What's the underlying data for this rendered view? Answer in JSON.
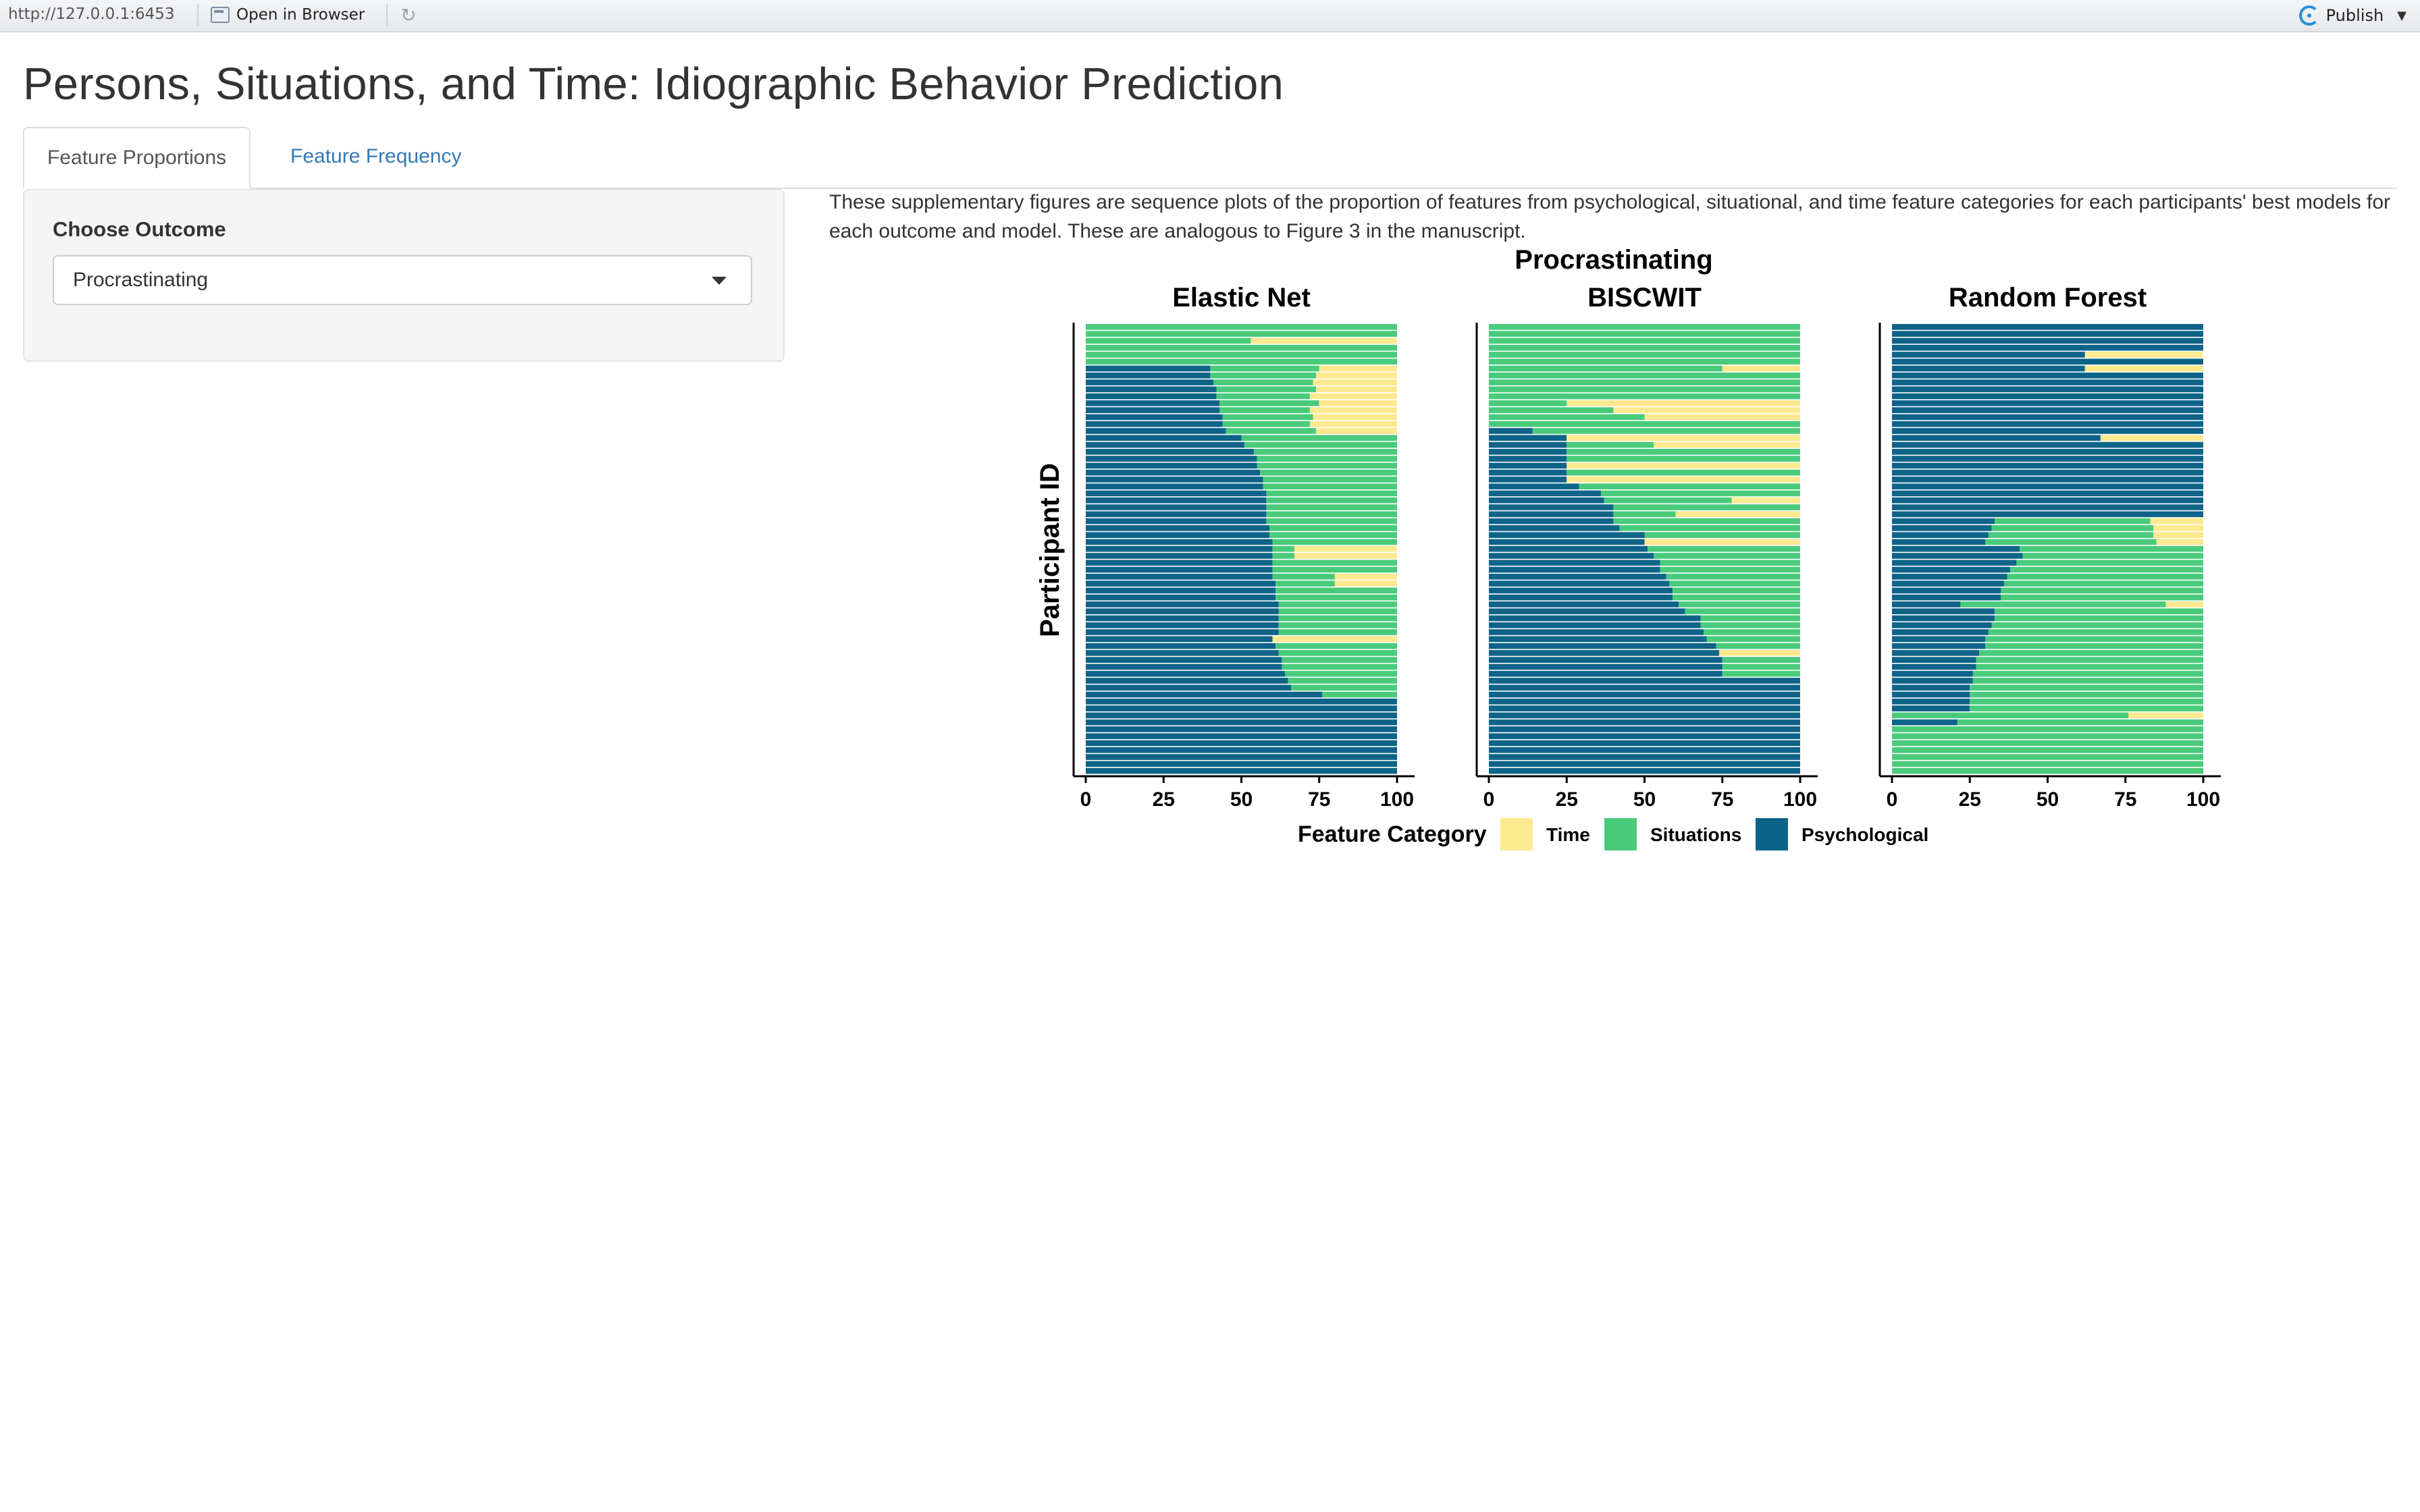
{
  "toolbar": {
    "url": "http://127.0.0.1:6453",
    "open_in_browser": "Open in Browser",
    "publish": "Publish"
  },
  "page": {
    "title": "Persons, Situations, and Time: Idiographic Behavior Prediction"
  },
  "tabs": [
    {
      "label": "Feature Proportions",
      "active": true
    },
    {
      "label": "Feature Frequency",
      "active": false
    }
  ],
  "sidebar": {
    "choose_outcome_label": "Choose Outcome",
    "selected_outcome": "Procrastinating"
  },
  "description": "These supplementary figures are sequence plots of the proportion of features from psychological, situational, and time feature categories for each participants' best models for each outcome and model. These are analogous to Figure 3 in the manuscript.",
  "colors": {
    "time": "#FDE98F",
    "situations": "#4ACB7C",
    "psychological": "#0D6388"
  },
  "chart_data": {
    "type": "bar",
    "orientation": "horizontal",
    "stacked": true,
    "title": "Procrastinating",
    "ylabel": "Participant ID",
    "xlim": [
      0,
      100
    ],
    "xticks": [
      "0",
      "25",
      "50",
      "75",
      "100"
    ],
    "legend": {
      "title": "Feature Category",
      "position": "bottom",
      "entries": [
        "Time",
        "Situations",
        "Psychological"
      ]
    },
    "panels": [
      {
        "name": "Elastic Net",
        "rows_note": "each row = [Psychological %, Situations %, Time %], top to bottom",
        "rows": [
          [
            0,
            100,
            0
          ],
          [
            0,
            100,
            0
          ],
          [
            0,
            53,
            47
          ],
          [
            0,
            100,
            0
          ],
          [
            0,
            100,
            0
          ],
          [
            0,
            100,
            0
          ],
          [
            40,
            35,
            25
          ],
          [
            40,
            34,
            26
          ],
          [
            41,
            32,
            27
          ],
          [
            42,
            32,
            26
          ],
          [
            42,
            30,
            28
          ],
          [
            43,
            32,
            25
          ],
          [
            43,
            29,
            28
          ],
          [
            44,
            29,
            27
          ],
          [
            44,
            28,
            28
          ],
          [
            45,
            29,
            26
          ],
          [
            50,
            50,
            0
          ],
          [
            51,
            49,
            0
          ],
          [
            54,
            46,
            0
          ],
          [
            55,
            45,
            0
          ],
          [
            55,
            45,
            0
          ],
          [
            56,
            44,
            0
          ],
          [
            57,
            43,
            0
          ],
          [
            57,
            43,
            0
          ],
          [
            58,
            42,
            0
          ],
          [
            58,
            42,
            0
          ],
          [
            58,
            42,
            0
          ],
          [
            58,
            42,
            0
          ],
          [
            58,
            42,
            0
          ],
          [
            59,
            41,
            0
          ],
          [
            59,
            41,
            0
          ],
          [
            60,
            40,
            0
          ],
          [
            60,
            7,
            33
          ],
          [
            60,
            7,
            33
          ],
          [
            60,
            40,
            0
          ],
          [
            60,
            40,
            0
          ],
          [
            60,
            20,
            20
          ],
          [
            61,
            19,
            20
          ],
          [
            61,
            39,
            0
          ],
          [
            61,
            39,
            0
          ],
          [
            62,
            38,
            0
          ],
          [
            62,
            38,
            0
          ],
          [
            62,
            38,
            0
          ],
          [
            62,
            38,
            0
          ],
          [
            62,
            38,
            0
          ],
          [
            60,
            0,
            40
          ],
          [
            61,
            39,
            0
          ],
          [
            62,
            38,
            0
          ],
          [
            63,
            37,
            0
          ],
          [
            63,
            37,
            0
          ],
          [
            64,
            36,
            0
          ],
          [
            65,
            35,
            0
          ],
          [
            66,
            34,
            0
          ],
          [
            76,
            24,
            0
          ],
          [
            100,
            0,
            0
          ],
          [
            100,
            0,
            0
          ],
          [
            100,
            0,
            0
          ],
          [
            100,
            0,
            0
          ],
          [
            100,
            0,
            0
          ],
          [
            100,
            0,
            0
          ],
          [
            100,
            0,
            0
          ],
          [
            100,
            0,
            0
          ],
          [
            100,
            0,
            0
          ],
          [
            100,
            0,
            0
          ],
          [
            100,
            0,
            0
          ]
        ]
      },
      {
        "name": "BISCWIT",
        "rows_note": "each row = [Psychological %, Situations %, Time %], top to bottom",
        "rows": [
          [
            0,
            100,
            0
          ],
          [
            0,
            100,
            0
          ],
          [
            0,
            100,
            0
          ],
          [
            0,
            100,
            0
          ],
          [
            0,
            100,
            0
          ],
          [
            0,
            100,
            0
          ],
          [
            0,
            75,
            25
          ],
          [
            0,
            100,
            0
          ],
          [
            0,
            100,
            0
          ],
          [
            0,
            100,
            0
          ],
          [
            0,
            100,
            0
          ],
          [
            0,
            25,
            75
          ],
          [
            0,
            40,
            60
          ],
          [
            0,
            50,
            50
          ],
          [
            0,
            100,
            0
          ],
          [
            14,
            86,
            0
          ],
          [
            25,
            0,
            75
          ],
          [
            25,
            28,
            47
          ],
          [
            25,
            75,
            0
          ],
          [
            25,
            75,
            0
          ],
          [
            25,
            0,
            75
          ],
          [
            25,
            75,
            0
          ],
          [
            25,
            0,
            75
          ],
          [
            29,
            71,
            0
          ],
          [
            36,
            64,
            0
          ],
          [
            37,
            41,
            22
          ],
          [
            40,
            60,
            0
          ],
          [
            40,
            20,
            40
          ],
          [
            40,
            60,
            0
          ],
          [
            42,
            58,
            0
          ],
          [
            50,
            50,
            0
          ],
          [
            50,
            0,
            50
          ],
          [
            51,
            49,
            0
          ],
          [
            53,
            47,
            0
          ],
          [
            55,
            45,
            0
          ],
          [
            55,
            45,
            0
          ],
          [
            57,
            43,
            0
          ],
          [
            58,
            42,
            0
          ],
          [
            59,
            41,
            0
          ],
          [
            59,
            41,
            0
          ],
          [
            61,
            39,
            0
          ],
          [
            63,
            37,
            0
          ],
          [
            68,
            32,
            0
          ],
          [
            68,
            32,
            0
          ],
          [
            69,
            31,
            0
          ],
          [
            70,
            30,
            0
          ],
          [
            73,
            27,
            0
          ],
          [
            74,
            0,
            26
          ],
          [
            75,
            25,
            0
          ],
          [
            75,
            25,
            0
          ],
          [
            75,
            25,
            0
          ],
          [
            100,
            0,
            0
          ],
          [
            100,
            0,
            0
          ],
          [
            100,
            0,
            0
          ],
          [
            100,
            0,
            0
          ],
          [
            100,
            0,
            0
          ],
          [
            100,
            0,
            0
          ],
          [
            100,
            0,
            0
          ],
          [
            100,
            0,
            0
          ],
          [
            100,
            0,
            0
          ],
          [
            100,
            0,
            0
          ],
          [
            100,
            0,
            0
          ],
          [
            100,
            0,
            0
          ],
          [
            100,
            0,
            0
          ],
          [
            100,
            0,
            0
          ]
        ]
      },
      {
        "name": "Random Forest",
        "rows_note": "each row = [Psychological %, Situations %, Time %], top to bottom",
        "rows": [
          [
            100,
            0,
            0
          ],
          [
            100,
            0,
            0
          ],
          [
            100,
            0,
            0
          ],
          [
            100,
            0,
            0
          ],
          [
            62,
            0,
            38
          ],
          [
            100,
            0,
            0
          ],
          [
            62,
            0,
            38
          ],
          [
            100,
            0,
            0
          ],
          [
            100,
            0,
            0
          ],
          [
            100,
            0,
            0
          ],
          [
            100,
            0,
            0
          ],
          [
            100,
            0,
            0
          ],
          [
            100,
            0,
            0
          ],
          [
            100,
            0,
            0
          ],
          [
            100,
            0,
            0
          ],
          [
            100,
            0,
            0
          ],
          [
            67,
            0,
            33
          ],
          [
            100,
            0,
            0
          ],
          [
            100,
            0,
            0
          ],
          [
            100,
            0,
            0
          ],
          [
            100,
            0,
            0
          ],
          [
            100,
            0,
            0
          ],
          [
            100,
            0,
            0
          ],
          [
            100,
            0,
            0
          ],
          [
            100,
            0,
            0
          ],
          [
            100,
            0,
            0
          ],
          [
            100,
            0,
            0
          ],
          [
            100,
            0,
            0
          ],
          [
            33,
            50,
            17
          ],
          [
            32,
            52,
            16
          ],
          [
            31,
            53,
            16
          ],
          [
            30,
            55,
            15
          ],
          [
            41,
            59,
            0
          ],
          [
            42,
            58,
            0
          ],
          [
            40,
            60,
            0
          ],
          [
            38,
            62,
            0
          ],
          [
            37,
            63,
            0
          ],
          [
            36,
            64,
            0
          ],
          [
            35,
            65,
            0
          ],
          [
            35,
            65,
            0
          ],
          [
            22,
            66,
            12
          ],
          [
            33,
            67,
            0
          ],
          [
            33,
            67,
            0
          ],
          [
            32,
            68,
            0
          ],
          [
            31,
            69,
            0
          ],
          [
            30,
            70,
            0
          ],
          [
            30,
            70,
            0
          ],
          [
            28,
            72,
            0
          ],
          [
            27,
            73,
            0
          ],
          [
            27,
            73,
            0
          ],
          [
            26,
            74,
            0
          ],
          [
            26,
            74,
            0
          ],
          [
            25,
            75,
            0
          ],
          [
            25,
            75,
            0
          ],
          [
            25,
            75,
            0
          ],
          [
            25,
            75,
            0
          ],
          [
            0,
            76,
            24
          ],
          [
            21,
            79,
            0
          ],
          [
            0,
            100,
            0
          ],
          [
            0,
            100,
            0
          ],
          [
            0,
            100,
            0
          ],
          [
            0,
            100,
            0
          ],
          [
            0,
            100,
            0
          ],
          [
            0,
            100,
            0
          ],
          [
            0,
            100,
            0
          ]
        ]
      }
    ]
  }
}
